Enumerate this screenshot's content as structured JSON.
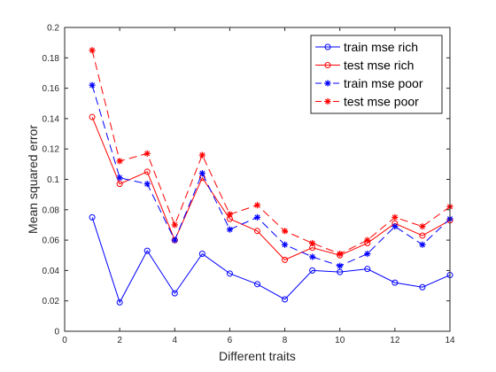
{
  "chart_data": {
    "type": "line",
    "title": "",
    "xlabel": "Different traits",
    "ylabel": "Mean squared error",
    "xlim": [
      0,
      14
    ],
    "ylim": [
      0,
      0.2
    ],
    "xticks": [
      0,
      2,
      4,
      6,
      8,
      10,
      12,
      14
    ],
    "yticks": [
      0,
      0.02,
      0.04,
      0.06,
      0.08,
      0.1,
      0.12,
      0.14,
      0.16,
      0.18,
      0.2
    ],
    "grid": false,
    "legend_position": "top-right",
    "x": [
      1,
      2,
      3,
      4,
      5,
      6,
      7,
      8,
      9,
      10,
      11,
      12,
      13,
      14
    ],
    "series": [
      {
        "name": "train mse rich",
        "color": "#0000ff",
        "linestyle": "solid",
        "marker": "o",
        "values": [
          0.075,
          0.019,
          0.053,
          0.025,
          0.051,
          0.038,
          0.031,
          0.021,
          0.04,
          0.039,
          0.041,
          0.032,
          0.029,
          0.037
        ]
      },
      {
        "name": "test mse rich",
        "color": "#ff0000",
        "linestyle": "solid",
        "marker": "o",
        "values": [
          0.141,
          0.097,
          0.105,
          0.06,
          0.101,
          0.074,
          0.066,
          0.047,
          0.055,
          0.05,
          0.058,
          0.071,
          0.063,
          0.073
        ]
      },
      {
        "name": "train mse poor",
        "color": "#0000ff",
        "linestyle": "dashed",
        "marker": "*",
        "values": [
          0.162,
          0.101,
          0.097,
          0.06,
          0.104,
          0.067,
          0.075,
          0.057,
          0.049,
          0.043,
          0.051,
          0.069,
          0.057,
          0.074
        ]
      },
      {
        "name": "test mse poor",
        "color": "#ff0000",
        "linestyle": "dashed",
        "marker": "*",
        "values": [
          0.185,
          0.112,
          0.117,
          0.07,
          0.116,
          0.077,
          0.083,
          0.066,
          0.058,
          0.051,
          0.06,
          0.075,
          0.069,
          0.082
        ]
      }
    ]
  }
}
